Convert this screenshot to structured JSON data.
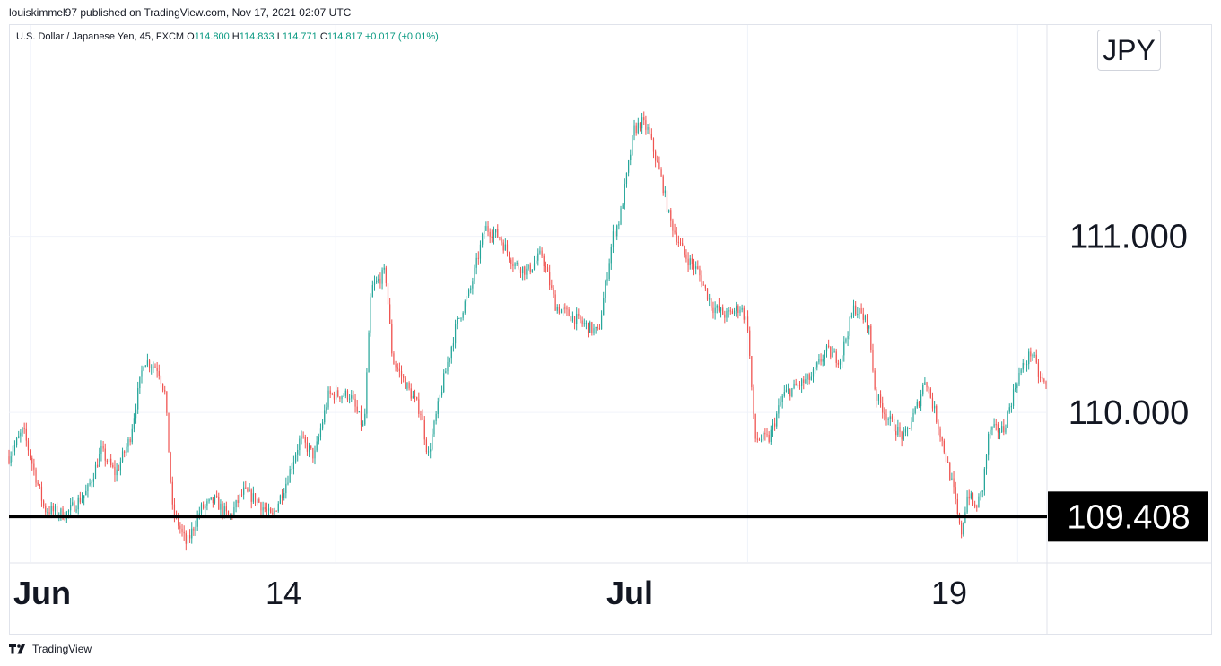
{
  "header": {
    "published_line": "louiskimmel97 published on TradingView.com, Nov 17, 2021 02:07 UTC"
  },
  "legend": {
    "symbol": "U.S. Dollar / Japanese Yen, 45, FXCM",
    "o_label": "O",
    "o_value": "114.800",
    "h_label": "H",
    "h_value": "114.833",
    "l_label": "L",
    "l_value": "114.771",
    "c_label": "C",
    "c_value": "114.817",
    "change": "+0.017 (+0.01%)"
  },
  "currency_badge": "JPY",
  "footer": {
    "brand": "TradingView"
  },
  "colors": {
    "up": "#26a69a",
    "down": "#ef5350",
    "level": "#000000",
    "grid": "#f0f3fa",
    "axis_text": "#131722"
  },
  "chart_data": {
    "type": "candlestick",
    "interval": "45",
    "y_axis": {
      "ticks": [
        111.0,
        110.0
      ],
      "tick_labels": [
        "111.000",
        "110.000"
      ],
      "range": [
        109.15,
        112.2
      ]
    },
    "x_axis": {
      "tick_labels": [
        "Jun",
        "14",
        "Jul",
        "19"
      ]
    },
    "horizontal_level": {
      "value": 109.408,
      "label": "109.408"
    },
    "grid": true,
    "price_path": [
      {
        "t": 0,
        "v": 109.75
      },
      {
        "t": 2,
        "v": 109.9
      },
      {
        "t": 5,
        "v": 109.45
      },
      {
        "t": 8,
        "v": 109.42
      },
      {
        "t": 11,
        "v": 109.55
      },
      {
        "t": 13,
        "v": 109.78
      },
      {
        "t": 15,
        "v": 109.65
      },
      {
        "t": 17,
        "v": 109.85
      },
      {
        "t": 19,
        "v": 110.3
      },
      {
        "t": 21,
        "v": 110.25
      },
      {
        "t": 22,
        "v": 110.1
      },
      {
        "t": 23,
        "v": 109.45
      },
      {
        "t": 25,
        "v": 109.25
      },
      {
        "t": 27,
        "v": 109.45
      },
      {
        "t": 29,
        "v": 109.5
      },
      {
        "t": 31,
        "v": 109.4
      },
      {
        "t": 33,
        "v": 109.55
      },
      {
        "t": 35,
        "v": 109.5
      },
      {
        "t": 37,
        "v": 109.4
      },
      {
        "t": 39,
        "v": 109.6
      },
      {
        "t": 41,
        "v": 109.85
      },
      {
        "t": 43,
        "v": 109.75
      },
      {
        "t": 45,
        "v": 110.1
      },
      {
        "t": 48,
        "v": 110.1
      },
      {
        "t": 50,
        "v": 109.9
      },
      {
        "t": 51,
        "v": 110.7
      },
      {
        "t": 53,
        "v": 110.8
      },
      {
        "t": 54,
        "v": 110.3
      },
      {
        "t": 56,
        "v": 110.15
      },
      {
        "t": 58,
        "v": 110.0
      },
      {
        "t": 59,
        "v": 109.75
      },
      {
        "t": 61,
        "v": 110.15
      },
      {
        "t": 63,
        "v": 110.5
      },
      {
        "t": 65,
        "v": 110.7
      },
      {
        "t": 67,
        "v": 111.05
      },
      {
        "t": 69,
        "v": 111.0
      },
      {
        "t": 71,
        "v": 110.85
      },
      {
        "t": 73,
        "v": 110.8
      },
      {
        "t": 75,
        "v": 110.9
      },
      {
        "t": 77,
        "v": 110.6
      },
      {
        "t": 79,
        "v": 110.55
      },
      {
        "t": 81,
        "v": 110.5
      },
      {
        "t": 83,
        "v": 110.45
      },
      {
        "t": 85,
        "v": 111.0
      },
      {
        "t": 86,
        "v": 111.1
      },
      {
        "t": 88,
        "v": 111.6
      },
      {
        "t": 89,
        "v": 111.65
      },
      {
        "t": 90,
        "v": 111.6
      },
      {
        "t": 92,
        "v": 111.3
      },
      {
        "t": 93,
        "v": 111.1
      },
      {
        "t": 95,
        "v": 110.9
      },
      {
        "t": 97,
        "v": 110.8
      },
      {
        "t": 99,
        "v": 110.6
      },
      {
        "t": 101,
        "v": 110.55
      },
      {
        "t": 103,
        "v": 110.6
      },
      {
        "t": 104,
        "v": 110.5
      },
      {
        "t": 105,
        "v": 109.85
      },
      {
        "t": 107,
        "v": 109.85
      },
      {
        "t": 109,
        "v": 110.1
      },
      {
        "t": 111,
        "v": 110.15
      },
      {
        "t": 113,
        "v": 110.2
      },
      {
        "t": 115,
        "v": 110.35
      },
      {
        "t": 117,
        "v": 110.3
      },
      {
        "t": 119,
        "v": 110.6
      },
      {
        "t": 121,
        "v": 110.5
      },
      {
        "t": 122,
        "v": 110.1
      },
      {
        "t": 124,
        "v": 109.95
      },
      {
        "t": 126,
        "v": 109.85
      },
      {
        "t": 128,
        "v": 110.05
      },
      {
        "t": 129,
        "v": 110.2
      },
      {
        "t": 131,
        "v": 109.9
      },
      {
        "t": 133,
        "v": 109.55
      },
      {
        "t": 134,
        "v": 109.3
      },
      {
        "t": 135,
        "v": 109.55
      },
      {
        "t": 136,
        "v": 109.45
      },
      {
        "t": 137,
        "v": 109.55
      },
      {
        "t": 138,
        "v": 109.9
      },
      {
        "t": 140,
        "v": 109.9
      },
      {
        "t": 142,
        "v": 110.2
      },
      {
        "t": 144,
        "v": 110.35
      },
      {
        "t": 145,
        "v": 110.2
      },
      {
        "t": 146,
        "v": 110.15
      }
    ]
  }
}
